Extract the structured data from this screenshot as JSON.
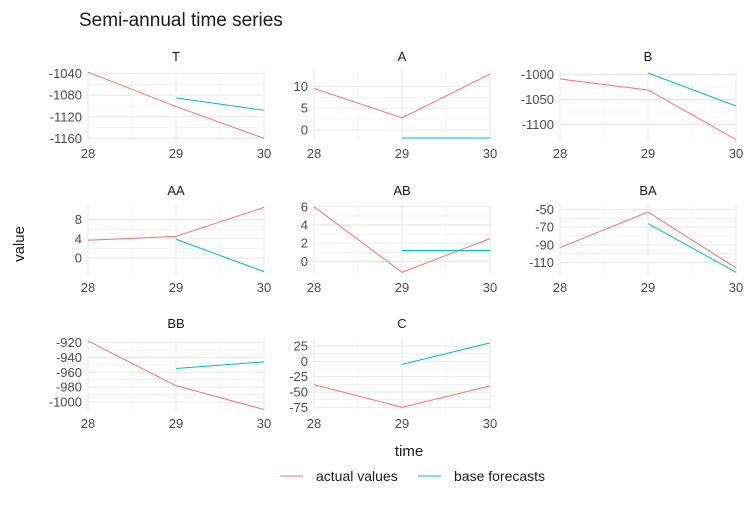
{
  "chart_data": {
    "type": "line",
    "title": "Semi-annual time series",
    "xlabel": "time",
    "ylabel": "value",
    "grid": true,
    "legend_position": "bottom",
    "colors": {
      "actual values": "#F8766D",
      "base forecasts": "#00BFC4",
      "grid": "#ebebeb"
    },
    "legend": [
      {
        "name": "actual values",
        "color": "#F8766D"
      },
      {
        "name": "base forecasts",
        "color": "#00BFC4"
      }
    ],
    "x_ticks": [
      28,
      29,
      30
    ],
    "panels": [
      {
        "title": "T",
        "xlim": [
          28,
          30
        ],
        "ylim": [
          -1165,
          -1035
        ],
        "yticks": [
          -1040,
          -1080,
          -1120,
          -1160
        ],
        "ytick_labels": [
          "-1040",
          "-1080",
          "-1120",
          "-1160"
        ],
        "series": [
          {
            "name": "actual values",
            "x": [
              28,
              29,
              30
            ],
            "y": [
              -1037,
              -1101,
              -1160
            ]
          },
          {
            "name": "base forecasts",
            "x": [
              29,
              30
            ],
            "y": [
              -1085,
              -1108
            ]
          }
        ]
      },
      {
        "title": "A",
        "xlim": [
          28,
          30
        ],
        "ylim": [
          -2.5,
          13.5
        ],
        "yticks": [
          10,
          5,
          0
        ],
        "ytick_labels": [
          "10",
          "5",
          "0"
        ],
        "series": [
          {
            "name": "actual values",
            "x": [
              28,
              29,
              30
            ],
            "y": [
              9.5,
              2.8,
              12.8
            ]
          },
          {
            "name": "base forecasts",
            "x": [
              29,
              30
            ],
            "y": [
              -1.8,
              -1.8
            ]
          }
        ]
      },
      {
        "title": "B",
        "xlim": [
          28,
          30
        ],
        "ylim": [
          -1133,
          -993
        ],
        "yticks": [
          -1000,
          -1050,
          -1100
        ],
        "ytick_labels": [
          "-1000",
          "-1050",
          "-1100"
        ],
        "series": [
          {
            "name": "actual values",
            "x": [
              28,
              29,
              30
            ],
            "y": [
              -1009,
              -1031,
              -1130
            ]
          },
          {
            "name": "base forecasts",
            "x": [
              29,
              30
            ],
            "y": [
              -997,
              -1063
            ]
          }
        ]
      },
      {
        "title": "AA",
        "xlim": [
          28,
          30
        ],
        "ylim": [
          -3.5,
          11
        ],
        "yticks": [
          8,
          4,
          0
        ],
        "ytick_labels": [
          "8",
          "4",
          "0"
        ],
        "series": [
          {
            "name": "actual values",
            "x": [
              28,
              29,
              30
            ],
            "y": [
              3.7,
              4.5,
              10.5
            ]
          },
          {
            "name": "base forecasts",
            "x": [
              29,
              30
            ],
            "y": [
              3.9,
              -2.8
            ]
          }
        ]
      },
      {
        "title": "AB",
        "xlim": [
          28,
          30
        ],
        "ylim": [
          -1.5,
          6.2
        ],
        "yticks": [
          6,
          4,
          2,
          0
        ],
        "ytick_labels": [
          "6",
          "4",
          "2",
          "0"
        ],
        "series": [
          {
            "name": "actual values",
            "x": [
              28,
              29,
              30
            ],
            "y": [
              6.0,
              -1.2,
              2.5
            ]
          },
          {
            "name": "base forecasts",
            "x": [
              29,
              30
            ],
            "y": [
              1.2,
              1.2
            ]
          }
        ]
      },
      {
        "title": "BA",
        "xlim": [
          28,
          30
        ],
        "ylim": [
          -124,
          -45
        ],
        "yticks": [
          -50,
          -70,
          -90,
          -110
        ],
        "ytick_labels": [
          "-50",
          "-70",
          "-90",
          "-110"
        ],
        "series": [
          {
            "name": "actual values",
            "x": [
              28,
              29,
              30
            ],
            "y": [
              -93,
              -53,
              -116
            ]
          },
          {
            "name": "base forecasts",
            "x": [
              29,
              30
            ],
            "y": [
              -66,
              -121
            ]
          }
        ]
      },
      {
        "title": "BB",
        "xlim": [
          28,
          30
        ],
        "ylim": [
          -1012,
          -914
        ],
        "yticks": [
          -920,
          -940,
          -960,
          -980,
          -1000
        ],
        "ytick_labels": [
          "-920",
          "-940",
          "-960",
          "-980",
          "-1000"
        ],
        "series": [
          {
            "name": "actual values",
            "x": [
              28,
              29,
              30
            ],
            "y": [
              -918,
              -978,
              -1010
            ]
          },
          {
            "name": "base forecasts",
            "x": [
              29,
              30
            ],
            "y": [
              -955,
              -946
            ]
          }
        ]
      },
      {
        "title": "C",
        "xlim": [
          28,
          30
        ],
        "ylim": [
          -81,
          38
        ],
        "yticks": [
          25,
          0,
          -25,
          -50,
          -75
        ],
        "ytick_labels": [
          "25",
          "0",
          "-25",
          "-50",
          "-75"
        ],
        "series": [
          {
            "name": "actual values",
            "x": [
              28,
              29,
              30
            ],
            "y": [
              -38,
              -75,
              -40
            ]
          },
          {
            "name": "base forecasts",
            "x": [
              29,
              30
            ],
            "y": [
              -5,
              30
            ]
          }
        ]
      }
    ]
  }
}
